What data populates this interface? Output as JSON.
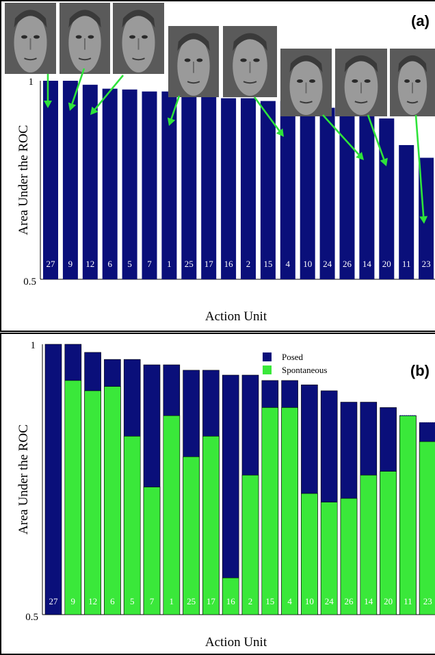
{
  "chart_data": [
    {
      "panel_label": "(a)",
      "type": "bar",
      "xlabel": "Action Unit",
      "ylabel": "Area Under the ROC",
      "ylim": [
        0.5,
        1
      ],
      "yticks": [
        "0.5",
        "1"
      ],
      "categories": [
        "27",
        "9",
        "12",
        "6",
        "5",
        "7",
        "1",
        "25",
        "17",
        "16",
        "2",
        "15",
        "4",
        "10",
        "24",
        "26",
        "14",
        "20",
        "11",
        "23"
      ],
      "series": [
        {
          "values": [
            1.0,
            1.0,
            0.99,
            0.98,
            0.978,
            0.973,
            0.973,
            0.963,
            0.963,
            0.956,
            0.956,
            0.949,
            0.949,
            0.942,
            0.932,
            0.913,
            0.913,
            0.905,
            0.838,
            0.806
          ],
          "color": "#0a0f7a"
        }
      ],
      "images": [
        "face-photo-27",
        "face-photo-9",
        "face-photo-12",
        "face-photo-1",
        "face-photo-2",
        "face-photo-4",
        "face-photo-14",
        "face-photo-23"
      ],
      "arrow_color": "#2ee33a",
      "grid": false
    },
    {
      "panel_label": "(b)",
      "type": "bar",
      "xlabel": "Action Unit",
      "ylabel": "Area Under the ROC",
      "ylim": [
        0.5,
        1
      ],
      "yticks": [
        "0.5",
        "1"
      ],
      "categories": [
        "27",
        "9",
        "12",
        "6",
        "5",
        "7",
        "1",
        "25",
        "17",
        "16",
        "2",
        "15",
        "4",
        "10",
        "24",
        "26",
        "14",
        "20",
        "11",
        "23"
      ],
      "legend_position": "top-right",
      "series": [
        {
          "name": "Posed",
          "color": "#0a0f7a",
          "values": [
            1.0,
            1.0,
            0.985,
            0.972,
            0.972,
            0.962,
            0.962,
            0.952,
            0.952,
            0.943,
            0.943,
            0.933,
            0.933,
            0.925,
            0.914,
            0.893,
            0.893,
            0.883,
            0.868,
            0.855
          ]
        },
        {
          "name": "Spontaneous",
          "color": "#3ae83a",
          "values": [
            null,
            0.933,
            0.914,
            0.922,
            0.83,
            0.736,
            0.868,
            0.792,
            0.83,
            0.568,
            0.758,
            0.883,
            0.883,
            0.724,
            0.708,
            0.715,
            0.758,
            0.765,
            0.868,
            0.82
          ]
        }
      ],
      "grid": false
    }
  ]
}
